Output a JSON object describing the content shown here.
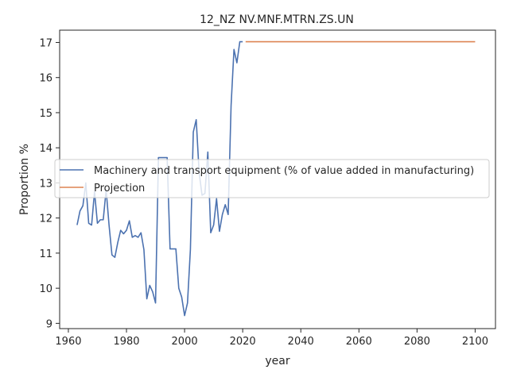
{
  "chart_data": {
    "type": "line",
    "title": "12_NZ NV.MNF.MTRN.ZS.UN",
    "xlabel": "year",
    "ylabel": "Proportion %",
    "xlim": [
      1957,
      2107
    ],
    "ylim": [
      8.85,
      17.35
    ],
    "xticks": [
      1960,
      1980,
      2000,
      2020,
      2040,
      2060,
      2080,
      2100
    ],
    "yticks": [
      9,
      10,
      11,
      12,
      13,
      14,
      15,
      16,
      17
    ],
    "grid": false,
    "legend_position": "center-left",
    "series": [
      {
        "name": "Machinery and transport equipment (% of value added in manufacturing)",
        "color": "#4c72b0",
        "x": [
          1963,
          1964,
          1965,
          1966,
          1967,
          1968,
          1969,
          1970,
          1971,
          1972,
          1973,
          1974,
          1975,
          1976,
          1977,
          1978,
          1979,
          1980,
          1981,
          1982,
          1983,
          1984,
          1985,
          1986,
          1987,
          1988,
          1989,
          1990,
          1991,
          1992,
          1993,
          1994,
          1995,
          1996,
          1997,
          1998,
          1999,
          2000,
          2001,
          2002,
          2003,
          2004,
          2005,
          2006,
          2007,
          2008,
          2009,
          2010,
          2011,
          2012,
          2013,
          2014,
          2015,
          2016,
          2017,
          2018,
          2019,
          2020
        ],
        "y": [
          11.8,
          12.2,
          12.35,
          13.0,
          11.85,
          11.8,
          12.75,
          11.85,
          11.95,
          11.95,
          12.8,
          11.8,
          10.95,
          10.88,
          11.3,
          11.65,
          11.55,
          11.65,
          11.92,
          11.45,
          11.5,
          11.45,
          11.58,
          11.1,
          9.7,
          10.08,
          9.9,
          9.58,
          13.72,
          13.72,
          13.72,
          13.72,
          11.12,
          11.12,
          11.12,
          10.0,
          9.75,
          9.22,
          9.58,
          11.1,
          14.45,
          14.8,
          13.3,
          12.65,
          12.7,
          13.88,
          11.58,
          11.8,
          12.55,
          11.62,
          12.1,
          12.38,
          12.1,
          15.2,
          16.8,
          16.42,
          17.02,
          17.02
        ]
      },
      {
        "name": "Projection",
        "color": "#dd8452",
        "x": [
          2021,
          2100
        ],
        "y": [
          17.02,
          17.02
        ]
      }
    ]
  }
}
